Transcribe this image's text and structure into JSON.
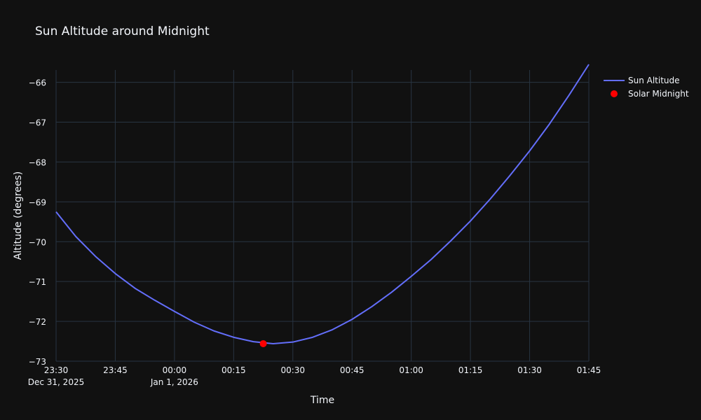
{
  "chart_data": {
    "type": "line",
    "title": "Sun Altitude around Midnight",
    "xlabel": "Time",
    "ylabel": "Altitude (degrees)",
    "xlim": [
      "2025-12-31T23:30",
      "2026-01-01T01:45"
    ],
    "ylim": [
      -73,
      -65.55
    ],
    "grid": true,
    "legend_position": "top-right",
    "x_ticks": [
      {
        "value": "2025-12-31T23:30",
        "label": "23:30",
        "sublabel": "Dec 31, 2025"
      },
      {
        "value": "2025-12-31T23:45",
        "label": "23:45",
        "sublabel": ""
      },
      {
        "value": "2026-01-01T00:00",
        "label": "00:00",
        "sublabel": "Jan 1, 2026"
      },
      {
        "value": "2026-01-01T00:15",
        "label": "00:15",
        "sublabel": ""
      },
      {
        "value": "2026-01-01T00:30",
        "label": "00:30",
        "sublabel": ""
      },
      {
        "value": "2026-01-01T00:45",
        "label": "00:45",
        "sublabel": ""
      },
      {
        "value": "2026-01-01T01:00",
        "label": "01:00",
        "sublabel": ""
      },
      {
        "value": "2026-01-01T01:15",
        "label": "01:15",
        "sublabel": ""
      },
      {
        "value": "2026-01-01T01:30",
        "label": "01:30",
        "sublabel": ""
      },
      {
        "value": "2026-01-01T01:45",
        "label": "01:45",
        "sublabel": ""
      }
    ],
    "y_ticks": [
      {
        "value": -73,
        "label": "−73"
      },
      {
        "value": -72,
        "label": "−72"
      },
      {
        "value": -71,
        "label": "−71"
      },
      {
        "value": -70,
        "label": "−70"
      },
      {
        "value": -69,
        "label": "−69"
      },
      {
        "value": -68,
        "label": "−68"
      },
      {
        "value": -67,
        "label": "−67"
      },
      {
        "value": -66,
        "label": "−66"
      }
    ],
    "series": [
      {
        "name": "Sun Altitude",
        "mode": "lines",
        "color": "#636efa",
        "x": [
          "2025-12-31T23:30",
          "2025-12-31T23:35",
          "2025-12-31T23:40",
          "2025-12-31T23:45",
          "2025-12-31T23:50",
          "2025-12-31T23:55",
          "2026-01-01T00:00",
          "2026-01-01T00:05",
          "2026-01-01T00:10",
          "2026-01-01T00:15",
          "2026-01-01T00:20",
          "2026-01-01T00:25",
          "2026-01-01T00:30",
          "2026-01-01T00:35",
          "2026-01-01T00:40",
          "2026-01-01T00:45",
          "2026-01-01T00:50",
          "2026-01-01T00:55",
          "2026-01-01T01:00",
          "2026-01-01T01:05",
          "2026-01-01T01:10",
          "2026-01-01T01:15",
          "2026-01-01T01:20",
          "2026-01-01T01:25",
          "2026-01-01T01:30",
          "2026-01-01T01:35",
          "2026-01-01T01:40",
          "2026-01-01T01:45"
        ],
        "y": [
          -69.25,
          -69.87,
          -70.37,
          -70.8,
          -71.17,
          -71.47,
          -71.75,
          -72.02,
          -72.24,
          -72.4,
          -72.51,
          -72.56,
          -72.52,
          -72.4,
          -72.21,
          -71.95,
          -71.63,
          -71.27,
          -70.87,
          -70.45,
          -69.98,
          -69.48,
          -68.93,
          -68.34,
          -67.72,
          -67.05,
          -66.32,
          -65.55
        ]
      },
      {
        "name": "Solar Midnight",
        "mode": "markers",
        "color": "#ff0000",
        "x": [
          "2026-01-01T00:22:30"
        ],
        "y": [
          -72.56
        ]
      }
    ]
  }
}
